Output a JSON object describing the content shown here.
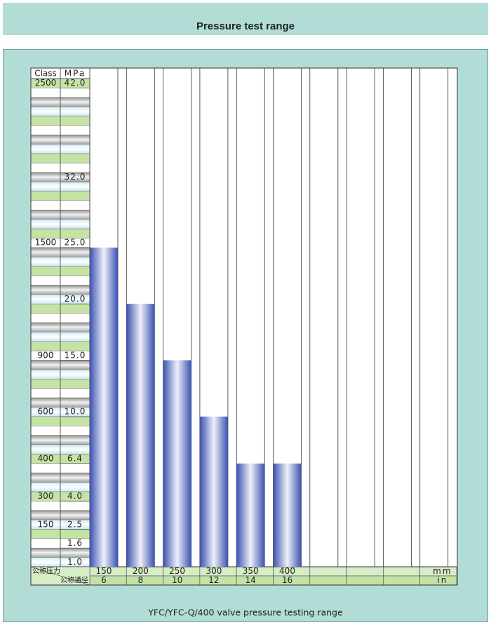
{
  "chart_data": {
    "type": "bar",
    "title": "Pressure test range",
    "caption": "YFC/YFC-Q/400 valve pressure testing range",
    "class_header": "Class",
    "y_header": "MPa",
    "x_label": "公称压力",
    "x2_label": "公称通径",
    "x_unit": "mm",
    "x2_unit": "in",
    "categories": [
      "150",
      "200",
      "250",
      "300",
      "350",
      "400"
    ],
    "categories_in": [
      "6",
      "8",
      "10",
      "12",
      "14",
      "16"
    ],
    "values": [
      25,
      20,
      15,
      10,
      6.4,
      6.4
    ],
    "color": "#3b52b0",
    "ylim": [
      1,
      42
    ],
    "yticks": [
      {
        "value": 42,
        "label": "42.0"
      },
      {
        "value": 32,
        "label": "32.0"
      },
      {
        "value": 25,
        "label": "25.0"
      },
      {
        "value": 20,
        "label": "20.0"
      },
      {
        "value": 15,
        "label": "15.0"
      },
      {
        "value": 10,
        "label": "10.0"
      },
      6.4,
      {
        "value": 4,
        "label": "4.0"
      },
      2.5,
      1.6,
      {
        "value": 1,
        "label": "1.0"
      }
    ],
    "class_labels": [
      "2500",
      null,
      "1500",
      null,
      "900",
      "600",
      "400",
      "300",
      "150",
      null,
      null
    ]
  }
}
